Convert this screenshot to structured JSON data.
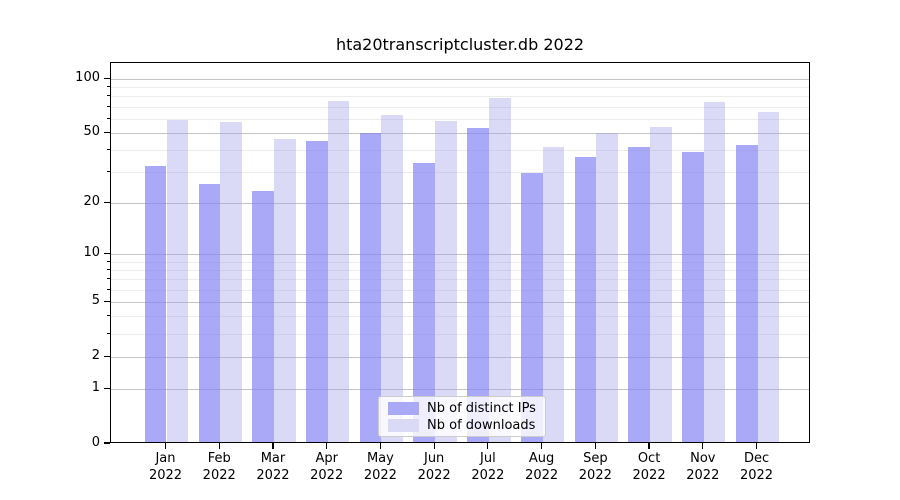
{
  "title": "hta20transcriptcluster.db 2022",
  "chart_data": {
    "type": "bar",
    "title": "hta20transcriptcluster.db 2022",
    "categories": [
      "Jan",
      "Feb",
      "Mar",
      "Apr",
      "May",
      "Jun",
      "Jul",
      "Aug",
      "Sep",
      "Oct",
      "Nov",
      "Dec"
    ],
    "category_year": "2022",
    "series": [
      {
        "name": "Nb of distinct IPs",
        "color": "#a9a9f7",
        "fill": "rgba(128,128,244,0.68)",
        "values": [
          32,
          25,
          23,
          44,
          49,
          33,
          52,
          29,
          36,
          41,
          38,
          42
        ]
      },
      {
        "name": "Nb of downloads",
        "color": "#dadaf7",
        "fill": "rgba(163,163,235,0.40)",
        "values": [
          58,
          56,
          45,
          74,
          62,
          57,
          77,
          41,
          49,
          53,
          73,
          64
        ]
      }
    ],
    "yscale": "log1p",
    "ylim": [
      0,
      123
    ],
    "yticks_major": [
      0,
      1,
      2,
      5,
      10,
      20,
      50,
      100
    ],
    "yticks_minor": [
      3,
      4,
      6,
      7,
      8,
      9,
      30,
      40,
      60,
      70,
      80,
      90
    ],
    "grid": true,
    "legend_position": "lower center",
    "colors": {
      "grid_major": "#c4c4c4",
      "grid_minor": "#ececec",
      "spine": "#000000",
      "text": "#000000",
      "legend_border": "#cccccc",
      "legend_bg": "rgba(255,255,255,0.8)"
    }
  }
}
